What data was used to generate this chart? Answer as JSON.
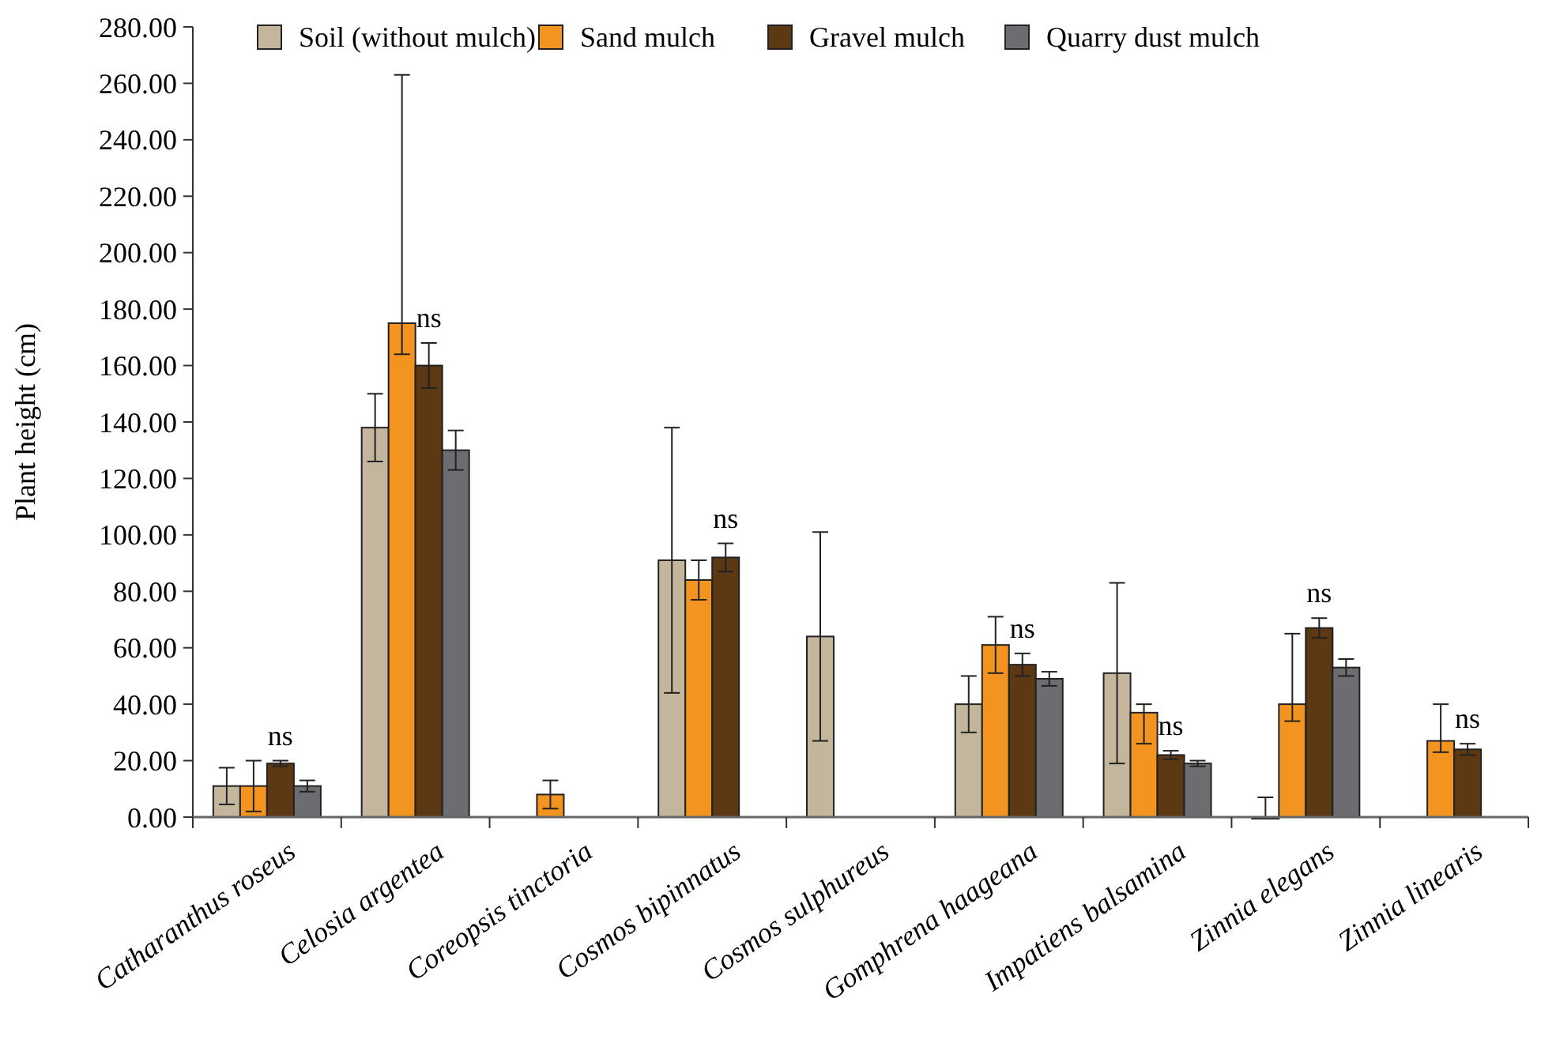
{
  "chart_data": {
    "type": "bar",
    "ylabel": "Plant height (cm)",
    "categories": [
      "Catharanthus roseus",
      "Celosia argentea",
      "Coreopsis tinctoria",
      "Cosmos bipinnatus",
      "Cosmos sulphureus",
      "Gomphrena haageana",
      "Impatiens balsamina",
      "Zinnia elegans",
      "Zinnia linearis"
    ],
    "series": [
      {
        "name": "Soil (without mulch)",
        "color": "#c4b69c",
        "values": [
          11,
          138,
          null,
          91,
          64,
          40,
          51,
          0,
          null
        ],
        "errors": [
          6.5,
          12,
          null,
          47,
          37,
          10,
          32,
          7,
          null
        ]
      },
      {
        "name": "Sand mulch",
        "color": "#f39420",
        "values": [
          11,
          175,
          8,
          84,
          null,
          61,
          37,
          40,
          27
        ],
        "errors": [
          9,
          [
            164,
            263
          ],
          5,
          7,
          null,
          10,
          [
            26,
            40
          ],
          [
            34,
            65
          ],
          [
            23,
            40
          ]
        ]
      },
      {
        "name": "Gravel mulch",
        "color": "#5c3813",
        "values": [
          19,
          160,
          null,
          92,
          null,
          54,
          22,
          67,
          24
        ],
        "errors": [
          1,
          8,
          null,
          5,
          null,
          4,
          1.5,
          3.5,
          2
        ]
      },
      {
        "name": "Quarry dust mulch",
        "color": "#6b6d70",
        "values": [
          11,
          130,
          null,
          null,
          null,
          49,
          19,
          53,
          null
        ],
        "errors": [
          2,
          7,
          null,
          null,
          null,
          2.5,
          1,
          3,
          null
        ]
      }
    ],
    "ylim": [
      0,
      280
    ],
    "yticks": [
      {
        "value": 0,
        "label": "0.00"
      },
      {
        "value": 20,
        "label": "20.00"
      },
      {
        "value": 40,
        "label": "40.00"
      },
      {
        "value": 60,
        "label": "60.00"
      },
      {
        "value": 80,
        "label": "80.00"
      },
      {
        "value": 100,
        "label": "100.00"
      },
      {
        "value": 120,
        "label": "120.00"
      },
      {
        "value": 140,
        "label": "140.00"
      },
      {
        "value": 160,
        "label": "160.00"
      },
      {
        "value": 180,
        "label": "180.00"
      },
      {
        "value": 200,
        "label": "200.00"
      },
      {
        "value": 220,
        "label": "220.00"
      },
      {
        "value": 240,
        "label": "240.00"
      },
      {
        "value": 260,
        "label": "260.00"
      },
      {
        "value": 280,
        "label": "280.00"
      }
    ],
    "annotations": [
      {
        "text": "ns",
        "x": "Catharanthus roseus",
        "y": 20
      },
      {
        "text": "ns",
        "x": "Celosia argentea",
        "y": 168
      },
      {
        "text": "ns",
        "x": "Cosmos bipinnatus",
        "y": 97
      },
      {
        "text": "ns",
        "x": "Gomphrena haageana",
        "y": 58
      },
      {
        "text": "ns",
        "x": "Impatiens balsamina",
        "y": 23.5
      },
      {
        "text": "ns",
        "x": "Zinnia elegans",
        "y": 70.5
      },
      {
        "text": "ns",
        "x": "Zinnia linearis",
        "y": 26
      }
    ],
    "legend": "top",
    "grid": false
  }
}
